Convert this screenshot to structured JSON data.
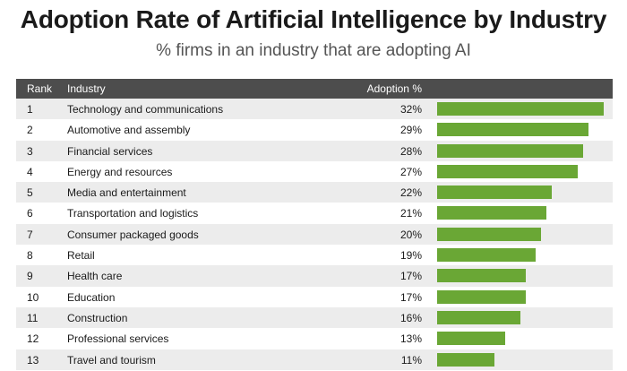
{
  "title": "Adoption Rate of Artificial Intelligence by Industry",
  "subtitle": "% firms in an industry that are adopting AI",
  "headers": {
    "rank": "Rank",
    "industry": "Industry",
    "adoption": "Adoption %"
  },
  "colors": {
    "bar": "#6aa735",
    "header_bg": "#4d4d4d",
    "row_alt": "#ececec"
  },
  "chart_data": {
    "type": "bar",
    "orientation": "horizontal",
    "title": "Adoption Rate of Artificial Intelligence by Industry",
    "subtitle": "% firms in an industry that are adopting AI",
    "xlim": [
      0,
      32
    ],
    "rows": [
      {
        "rank": "1",
        "industry": "Technology and communications",
        "label": "32%",
        "value": 32
      },
      {
        "rank": "2",
        "industry": "Automotive and assembly",
        "label": "29%",
        "value": 29
      },
      {
        "rank": "3",
        "industry": "Financial services",
        "label": "28%",
        "value": 28
      },
      {
        "rank": "4",
        "industry": "Energy and resources",
        "label": "27%",
        "value": 27
      },
      {
        "rank": "5",
        "industry": "Media and entertainment",
        "label": "22%",
        "value": 22
      },
      {
        "rank": "6",
        "industry": "Transportation and logistics",
        "label": "21%",
        "value": 21
      },
      {
        "rank": "7",
        "industry": "Consumer packaged goods",
        "label": "20%",
        "value": 20
      },
      {
        "rank": "8",
        "industry": "Retail",
        "label": "19%",
        "value": 19
      },
      {
        "rank": "9",
        "industry": "Health care",
        "label": "17%",
        "value": 17
      },
      {
        "rank": "10",
        "industry": "Education",
        "label": "17%",
        "value": 17
      },
      {
        "rank": "11",
        "industry": "Construction",
        "label": "16%",
        "value": 16
      },
      {
        "rank": "12",
        "industry": "Professional services",
        "label": "13%",
        "value": 13
      },
      {
        "rank": "13",
        "industry": "Travel and tourism",
        "label": "11%",
        "value": 11
      }
    ]
  }
}
